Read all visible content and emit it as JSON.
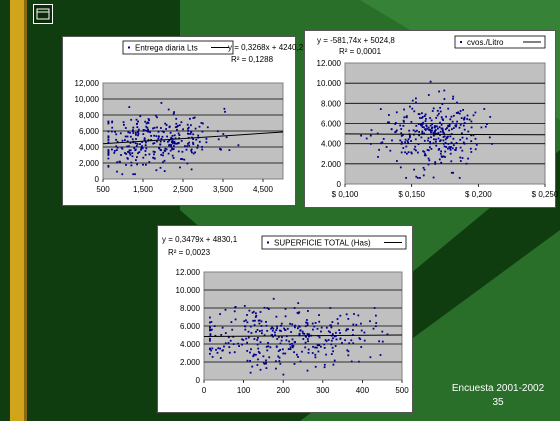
{
  "colors": {
    "accent_stripe": "#d2a41c",
    "background_dark": "#0f3d0f",
    "background_light": "#2f7a2f",
    "plot_area": "#c0c0c0",
    "points": "#00008b"
  },
  "slide": {
    "footer_line1": "Encuesta 2001-2002",
    "page_number": "35",
    "logo_icon": "window-logo-icon"
  },
  "chart_data": [
    {
      "type": "scatter",
      "legend": "Entrega diaria Lts",
      "equation": "y = 0,3268x + 4240,2",
      "r2": "R² = 0,1288",
      "xlim": [
        500,
        5000
      ],
      "ylim": [
        0,
        12000
      ],
      "x_ticks": [
        "500",
        "1,500",
        "2,500",
        "3,500",
        "4,500"
      ],
      "y_ticks": [
        "0",
        "2,000",
        "4,000",
        "6,000",
        "8,000",
        "10,000",
        "12,000"
      ],
      "trend": {
        "slope": 0.3268,
        "intercept": 4240.2
      },
      "n_points": 320,
      "x_mean": 1800,
      "x_sd": 750,
      "seed": 11
    },
    {
      "type": "scatter",
      "legend": "cvos./Litro",
      "equation": "y = -581,74x + 5024,8",
      "r2": "R² = 0,0001",
      "xlim": [
        0.1,
        0.25
      ],
      "ylim": [
        0,
        12000
      ],
      "x_ticks": [
        "$ 0,100",
        "$ 0,150",
        "$ 0,200",
        "$ 0,250"
      ],
      "y_ticks": [
        "0",
        "2.000",
        "4.000",
        "6.000",
        "8.000",
        "10.000",
        "12.000"
      ],
      "trend": {
        "slope": -581.74,
        "intercept": 5024.8
      },
      "n_points": 320,
      "x_mean": 0.165,
      "x_sd": 0.018,
      "seed": 23
    },
    {
      "type": "scatter",
      "legend": "SUPERFICIE TOTAL (Has)",
      "equation": "y = 0,3479x + 4830,1",
      "r2": "R² = 0,0023",
      "xlim": [
        0,
        500
      ],
      "ylim": [
        0,
        12000
      ],
      "x_ticks": [
        "0",
        "100",
        "200",
        "300",
        "400",
        "500"
      ],
      "y_ticks": [
        "0",
        "2.000",
        "4.000",
        "6.000",
        "8.000",
        "10.000",
        "12.000"
      ],
      "trend": {
        "slope": 0.3479,
        "intercept": 4830.1
      },
      "n_points": 340,
      "x_mean": 200,
      "x_sd": 110,
      "seed": 37
    }
  ]
}
